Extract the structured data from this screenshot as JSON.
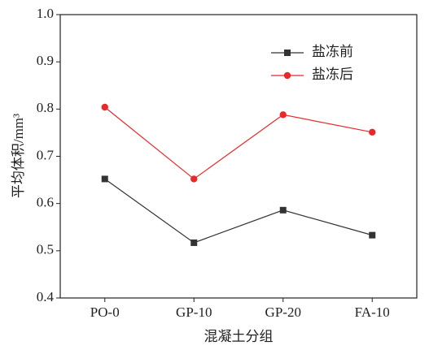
{
  "chart_data": {
    "type": "line",
    "x_label": "混凝土分组",
    "y_label": "平均体积/mm³",
    "categories": [
      "PO-0",
      "GP-10",
      "GP-20",
      "FA-10"
    ],
    "series": [
      {
        "name": "盐冻前",
        "color": "#333333",
        "marker": "square",
        "values": [
          0.652,
          0.517,
          0.586,
          0.533
        ]
      },
      {
        "name": "盐冻后",
        "color": "#e8282a",
        "marker": "circle",
        "values": [
          0.804,
          0.652,
          0.788,
          0.751
        ]
      }
    ],
    "ylim": [
      0.4,
      1.0
    ],
    "yticks": [
      0.4,
      0.5,
      0.6,
      0.7,
      0.8,
      0.9,
      {
        "value": 1.0,
        "label": "1.0"
      }
    ],
    "legend": "upper right"
  }
}
